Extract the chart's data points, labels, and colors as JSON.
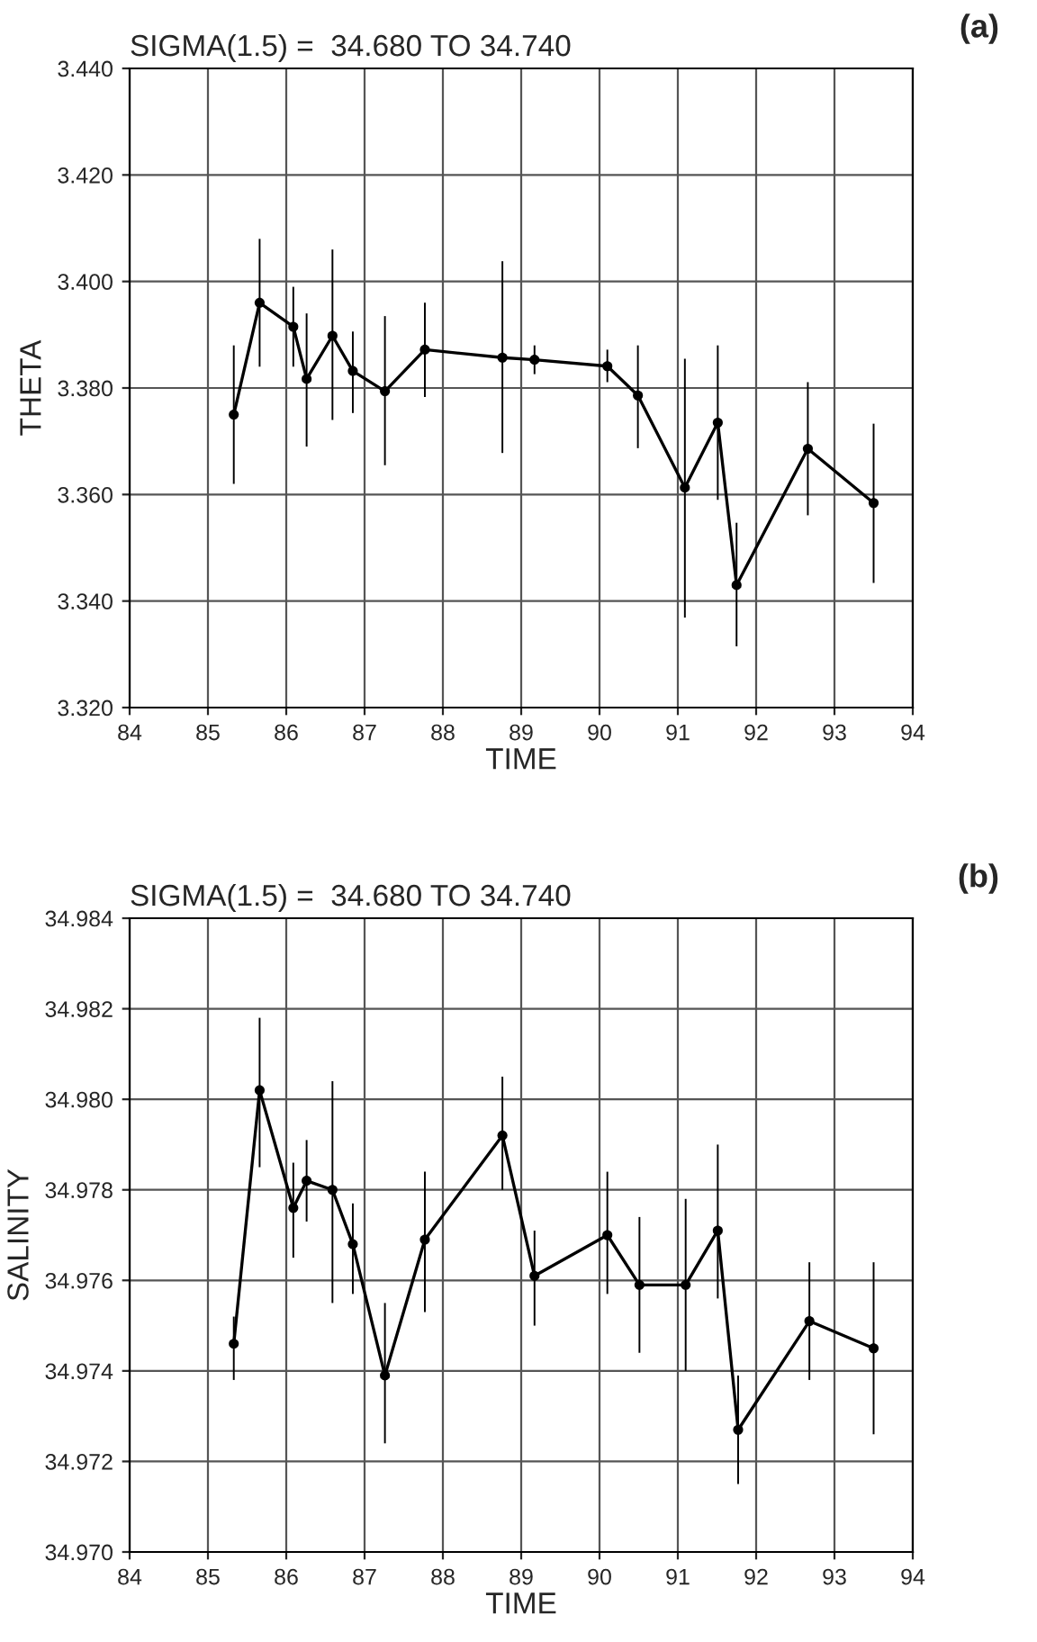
{
  "chart_data": [
    {
      "type": "line",
      "title": "SIGMA(1.5) =  34.680 TO 34.740",
      "xlabel": "TIME",
      "ylabel": "THETA",
      "annotations": [
        "(a)"
      ],
      "x": [
        85.33,
        85.66,
        86.09,
        86.26,
        86.59,
        86.85,
        87.26,
        87.77,
        88.76,
        89.17,
        90.1,
        90.49,
        91.09,
        91.51,
        91.75,
        92.66,
        93.5
      ],
      "series": [
        {
          "color": "#000000",
          "values": [
            3.375,
            3.396,
            3.3915,
            3.3817,
            3.3898,
            3.3832,
            3.3794,
            3.3872,
            3.3857,
            3.3853,
            3.3841,
            3.3786,
            3.3613,
            3.3735,
            3.343,
            3.3686,
            3.3584
          ],
          "errors": [
            [
              3.362,
              3.388
            ],
            [
              3.384,
              3.408
            ],
            [
              3.384,
              3.399
            ],
            [
              3.369,
              3.394
            ],
            [
              3.374,
              3.406
            ],
            [
              3.3753,
              3.3906
            ],
            [
              3.3655,
              3.3935
            ],
            [
              3.3783,
              3.396
            ],
            [
              3.3678,
              3.4038
            ],
            [
              3.3826,
              3.388
            ],
            [
              3.3811,
              3.3872
            ],
            [
              3.3687,
              3.388
            ],
            [
              3.3369,
              3.3855
            ],
            [
              3.359,
              3.388
            ],
            [
              3.3315,
              3.3547
            ],
            [
              3.3561,
              3.3811
            ],
            [
              3.3434,
              3.3733
            ]
          ]
        }
      ],
      "xlim": [
        84,
        94
      ],
      "xticks": [
        84,
        85,
        86,
        87,
        88,
        89,
        90,
        91,
        92,
        93,
        94
      ],
      "ylim": [
        3.32,
        3.44
      ],
      "yticks": [
        {
          "value": 3.32,
          "label": "3.320"
        },
        {
          "value": 3.34,
          "label": "3.340"
        },
        {
          "value": 3.36,
          "label": "3.360"
        },
        {
          "value": 3.38,
          "label": "3.380"
        },
        {
          "value": 3.4,
          "label": "3.400"
        },
        {
          "value": 3.42,
          "label": "3.420"
        },
        {
          "value": 3.44,
          "label": "3.440"
        }
      ],
      "grid": true,
      "marker": "circle",
      "line_style": "solid"
    },
    {
      "type": "line",
      "title": "SIGMA(1.5) =  34.680 TO 34.740",
      "xlabel": "TIME",
      "ylabel": "SALINITY",
      "annotations": [
        "(b)"
      ],
      "x": [
        85.33,
        85.66,
        86.09,
        86.26,
        86.59,
        86.85,
        87.26,
        87.77,
        88.76,
        89.17,
        90.1,
        90.51,
        91.1,
        91.51,
        91.77,
        92.68,
        93.5
      ],
      "series": [
        {
          "color": "#000000",
          "values": [
            34.9746,
            34.9802,
            34.9776,
            34.9782,
            34.978,
            34.9768,
            34.9739,
            34.9769,
            34.9792,
            34.9761,
            34.977,
            34.9759,
            34.9759,
            34.9771,
            34.9727,
            34.9751,
            34.9745
          ],
          "errors": [
            [
              34.9738,
              34.9752
            ],
            [
              34.9785,
              34.9818
            ],
            [
              34.9765,
              34.9786
            ],
            [
              34.9773,
              34.9791
            ],
            [
              34.9755,
              34.9804
            ],
            [
              34.9757,
              34.9777
            ],
            [
              34.9724,
              34.9755
            ],
            [
              34.9753,
              34.9784
            ],
            [
              34.978,
              34.9805
            ],
            [
              34.975,
              34.9771
            ],
            [
              34.9757,
              34.9784
            ],
            [
              34.9744,
              34.9774
            ],
            [
              34.974,
              34.9778
            ],
            [
              34.9756,
              34.979
            ],
            [
              34.9715,
              34.9739
            ],
            [
              34.9738,
              34.9764
            ],
            [
              34.9726,
              34.9764
            ]
          ]
        }
      ],
      "xlim": [
        84,
        94
      ],
      "xticks": [
        84,
        85,
        86,
        87,
        88,
        89,
        90,
        91,
        92,
        93,
        94
      ],
      "ylim": [
        34.97,
        34.984
      ],
      "yticks": [
        {
          "value": 34.97,
          "label": "34.970"
        },
        {
          "value": 34.972,
          "label": "34.972"
        },
        {
          "value": 34.974,
          "label": "34.974"
        },
        {
          "value": 34.976,
          "label": "34.976"
        },
        {
          "value": 34.978,
          "label": "34.978"
        },
        {
          "value": 34.98,
          "label": "34.980"
        },
        {
          "value": 34.982,
          "label": "34.982"
        },
        {
          "value": 34.984,
          "label": "34.984"
        }
      ],
      "grid": true,
      "marker": "circle",
      "line_style": "solid"
    }
  ]
}
